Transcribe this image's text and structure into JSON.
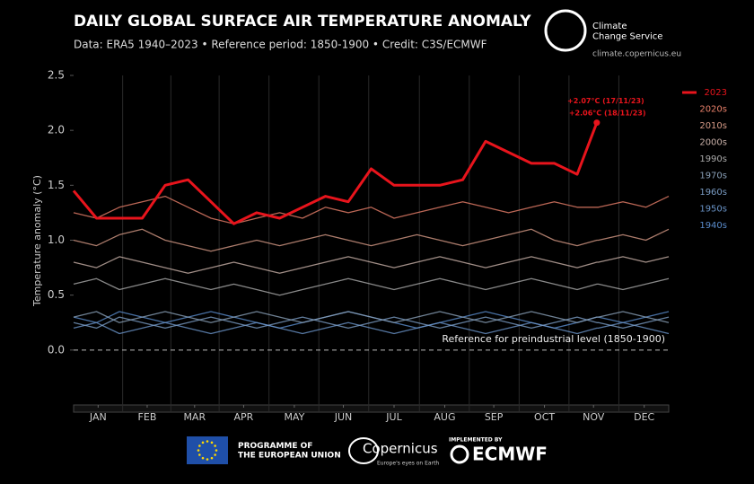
{
  "header": {
    "brand": "Climate\nChange Service",
    "url": "climate.copernicus.eu"
  },
  "chart_data": {
    "type": "line",
    "title": "DAILY GLOBAL SURFACE AIR TEMPERATURE ANOMALY",
    "subtitle": "Data: ERA5 1940–2023 • Reference period: 1850-1900 • Credit: C3S/ECMWF",
    "y_label": "Temperature anomaly (°C)",
    "x": [
      1,
      15,
      29,
      43,
      57,
      71,
      85,
      99,
      113,
      127,
      141,
      155,
      169,
      183,
      197,
      211,
      225,
      239,
      253,
      267,
      281,
      295,
      309,
      321,
      322,
      337,
      351,
      365
    ],
    "xlim": [
      1,
      365
    ],
    "xticks": [
      {
        "value": 16,
        "label": "JAN"
      },
      {
        "value": 46,
        "label": "FEB"
      },
      {
        "value": 75,
        "label": "MAR"
      },
      {
        "value": 105,
        "label": "APR"
      },
      {
        "value": 136,
        "label": "MAY"
      },
      {
        "value": 166,
        "label": "JUN"
      },
      {
        "value": 197,
        "label": "JUL"
      },
      {
        "value": 228,
        "label": "AUG"
      },
      {
        "value": 258,
        "label": "SEP"
      },
      {
        "value": 289,
        "label": "OCT"
      },
      {
        "value": 319,
        "label": "NOV"
      },
      {
        "value": 350,
        "label": "DEC"
      }
    ],
    "ylim": [
      -0.5,
      2.5
    ],
    "yticks": [
      {
        "value": 0,
        "label": "0.0"
      },
      0.5,
      {
        "value": 1,
        "label": "1.0"
      },
      1.5,
      {
        "value": 2,
        "label": "2.0"
      },
      2.5
    ],
    "series": [
      {
        "name": "2023",
        "color": "#e8141c",
        "values": [
          1.45,
          1.2,
          1.2,
          1.2,
          1.5,
          1.55,
          1.35,
          1.15,
          1.25,
          1.2,
          1.3,
          1.4,
          1.35,
          1.65,
          1.5,
          1.5,
          1.5,
          1.55,
          1.9,
          1.8,
          1.7,
          1.7,
          1.6,
          2.07,
          2.06,
          null,
          null,
          null
        ]
      },
      {
        "name": "2020s",
        "color": "#e8806a",
        "values": [
          1.25,
          1.2,
          1.3,
          1.35,
          1.4,
          1.3,
          1.2,
          1.15,
          1.2,
          1.25,
          1.2,
          1.3,
          1.25,
          1.3,
          1.2,
          1.25,
          1.3,
          1.35,
          1.3,
          1.25,
          1.3,
          1.35,
          1.3,
          1.3,
          1.3,
          1.35,
          1.3,
          1.4
        ]
      },
      {
        "name": "2010s",
        "color": "#d69a86",
        "values": [
          1.0,
          0.95,
          1.05,
          1.1,
          1.0,
          0.95,
          0.9,
          0.95,
          1.0,
          0.95,
          1.0,
          1.05,
          1.0,
          0.95,
          1.0,
          1.05,
          1.0,
          0.95,
          1.0,
          1.05,
          1.1,
          1.0,
          0.95,
          1.0,
          1.0,
          1.05,
          1.0,
          1.1
        ]
      },
      {
        "name": "2000s",
        "color": "#c8b0a8",
        "values": [
          0.8,
          0.75,
          0.85,
          0.8,
          0.75,
          0.7,
          0.75,
          0.8,
          0.75,
          0.7,
          0.75,
          0.8,
          0.85,
          0.8,
          0.75,
          0.8,
          0.85,
          0.8,
          0.75,
          0.8,
          0.85,
          0.8,
          0.75,
          0.8,
          0.8,
          0.85,
          0.8,
          0.85
        ]
      },
      {
        "name": "1990s",
        "color": "#aaaaaa",
        "values": [
          0.6,
          0.65,
          0.55,
          0.6,
          0.65,
          0.6,
          0.55,
          0.6,
          0.55,
          0.5,
          0.55,
          0.6,
          0.65,
          0.6,
          0.55,
          0.6,
          0.65,
          0.6,
          0.55,
          0.6,
          0.65,
          0.6,
          0.55,
          0.6,
          0.6,
          0.55,
          0.6,
          0.65
        ]
      },
      {
        "name": "1970s",
        "color": "#8aa0b8",
        "values": [
          0.3,
          0.35,
          0.25,
          0.3,
          0.35,
          0.3,
          0.25,
          0.3,
          0.35,
          0.3,
          0.25,
          0.3,
          0.35,
          0.3,
          0.25,
          0.3,
          0.35,
          0.3,
          0.25,
          0.3,
          0.35,
          0.3,
          0.25,
          0.3,
          0.3,
          0.35,
          0.3,
          0.25
        ]
      },
      {
        "name": "1960s",
        "color": "#7a9cc4",
        "values": [
          0.25,
          0.2,
          0.3,
          0.25,
          0.2,
          0.25,
          0.3,
          0.25,
          0.2,
          0.25,
          0.3,
          0.25,
          0.2,
          0.25,
          0.3,
          0.25,
          0.2,
          0.25,
          0.3,
          0.25,
          0.2,
          0.25,
          0.3,
          0.25,
          0.25,
          0.2,
          0.25,
          0.3
        ]
      },
      {
        "name": "1950s",
        "color": "#6a94c8",
        "values": [
          0.2,
          0.25,
          0.15,
          0.2,
          0.25,
          0.2,
          0.15,
          0.2,
          0.25,
          0.2,
          0.15,
          0.2,
          0.25,
          0.2,
          0.15,
          0.2,
          0.25,
          0.2,
          0.15,
          0.2,
          0.25,
          0.2,
          0.15,
          0.2,
          0.2,
          0.25,
          0.2,
          0.15
        ]
      },
      {
        "name": "1940s",
        "color": "#5a8ccc",
        "values": [
          0.3,
          0.25,
          0.35,
          0.3,
          0.25,
          0.3,
          0.35,
          0.3,
          0.25,
          0.2,
          0.25,
          0.3,
          0.35,
          0.3,
          0.25,
          0.2,
          0.25,
          0.3,
          0.35,
          0.3,
          0.25,
          0.2,
          0.25,
          0.3,
          0.3,
          0.25,
          0.3,
          0.35
        ]
      }
    ],
    "annotations": [
      {
        "text": "+2.07°C (17/11/23)",
        "series": 0,
        "index": 23
      },
      {
        "text": "+2.06°C (18/11/23)",
        "series": 0,
        "index": 24
      }
    ],
    "reference": {
      "value": 0,
      "label": "Reference for preindustrial level (1850-1900)"
    }
  },
  "footer": {
    "eu": "PROGRAMME OF\nTHE EUROPEAN UNION",
    "copernicus": "Copernicus",
    "copernicus_tag": "Europe's eyes on Earth",
    "implemented": "IMPLEMENTED BY",
    "ecmwf": "ECMWF"
  }
}
